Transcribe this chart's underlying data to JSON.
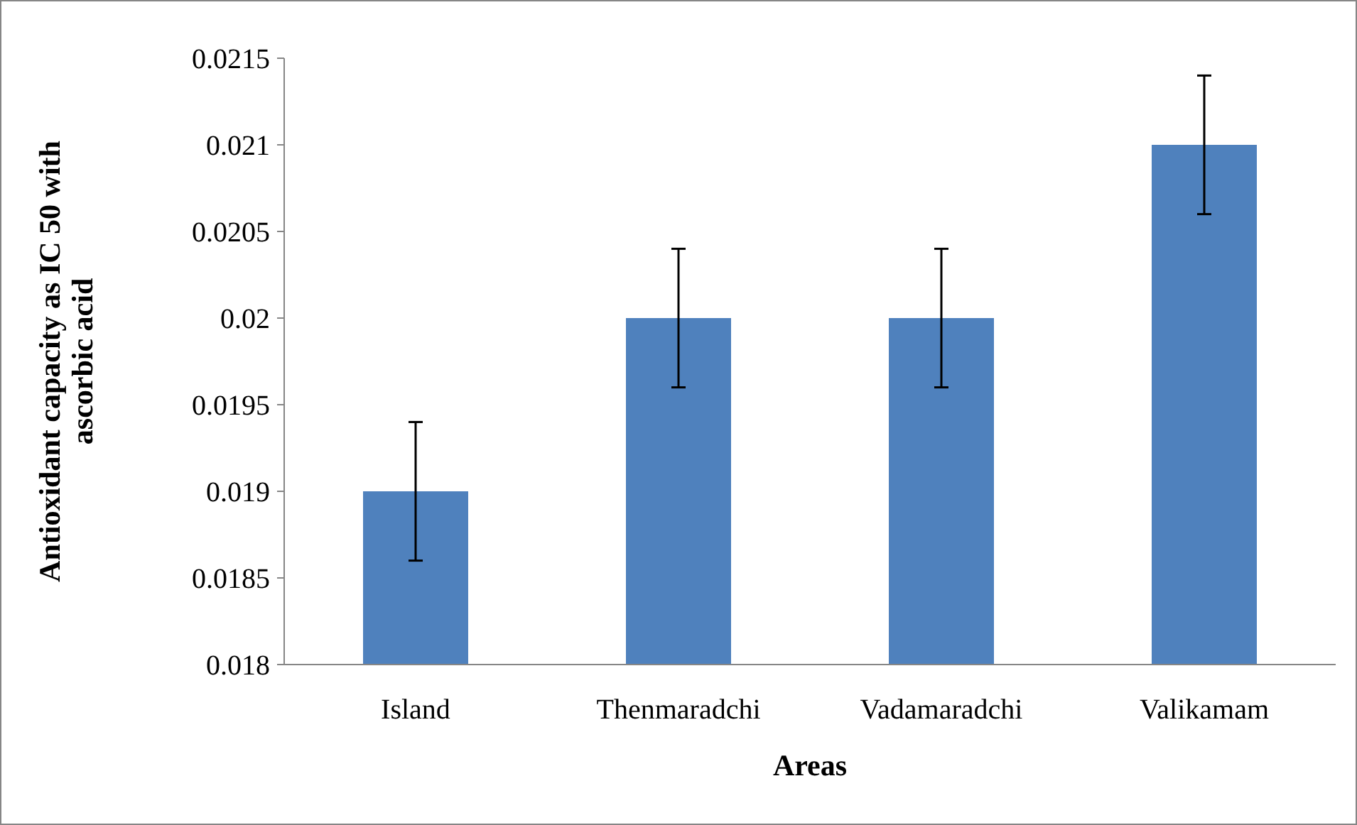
{
  "chart_data": {
    "type": "bar",
    "xlabel": "Areas",
    "ylabel": "Antioxidant capacity as IC 50 with ascorbic acid",
    "categories": [
      "Island",
      "Thenmaradchi",
      "Vadamaradchi",
      "Valikamam"
    ],
    "values": [
      0.019,
      0.02,
      0.02,
      0.021
    ],
    "errors": [
      0.0004,
      0.0004,
      0.0004,
      0.0004
    ],
    "color": "#4f81bd",
    "ylim": [
      0.018,
      0.0215
    ],
    "yticks": [
      0.018,
      0.0185,
      0.019,
      0.0195,
      0.02,
      0.0205,
      0.021,
      0.0215
    ],
    "grid": false
  }
}
